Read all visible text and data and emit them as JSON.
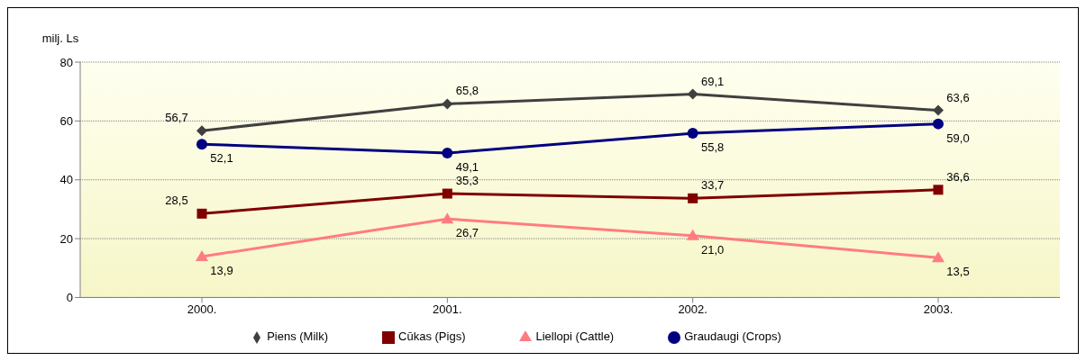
{
  "chart_data": {
    "type": "line",
    "ylabel": "milj. Ls",
    "categories": [
      "2000.",
      "2001.",
      "2002.",
      "2003."
    ],
    "ylim": [
      0,
      80
    ],
    "yticks": [
      0,
      20,
      40,
      60,
      80
    ],
    "grid": "y",
    "legend": "bottom",
    "line_style": "solid",
    "series": [
      {
        "name": "Piens (Milk)",
        "color": "#404040",
        "marker": "diamond",
        "values": [
          56.7,
          65.8,
          69.1,
          63.6
        ],
        "value_labels": [
          "56,7",
          "65,8",
          "69,1",
          "63,6"
        ]
      },
      {
        "name": "Cūkas (Pigs)",
        "color": "#800000",
        "marker": "square",
        "values": [
          28.5,
          35.3,
          33.7,
          36.6
        ],
        "value_labels": [
          "28,5",
          "35,3",
          "33,7",
          "36,6"
        ]
      },
      {
        "name": "Liellopi  (Cattle)",
        "color": "#ff7c80",
        "marker": "triangle",
        "values": [
          13.9,
          26.7,
          21.0,
          13.5
        ],
        "value_labels": [
          "13,9",
          "26,7",
          "21,0",
          "13,5"
        ]
      },
      {
        "name": "Graudaugi  (Crops)",
        "color": "#000080",
        "marker": "circle",
        "values": [
          52.1,
          49.1,
          55.8,
          59.0
        ],
        "value_labels": [
          "52,1",
          "49,1",
          "55,8",
          "59,0"
        ]
      }
    ]
  }
}
